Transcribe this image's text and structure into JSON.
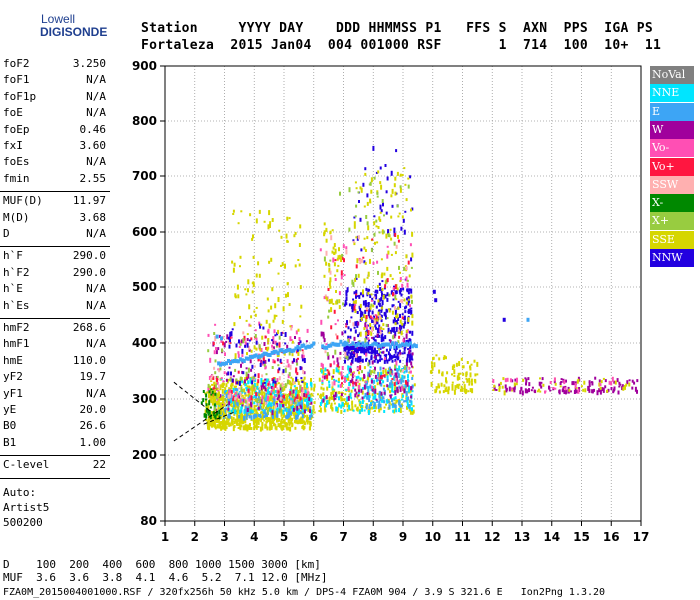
{
  "logo": {
    "line1": "Lowell",
    "line2": "DIGISONDE"
  },
  "header": {
    "row1": "Station     YYYY DAY    DDD HHMMSS P1   FFS S  AXN  PPS  IGA PS",
    "row2": "Fortaleza  2015 Jan04  004 001000 RSF       1  714  100  10+  11"
  },
  "params": [
    [
      {
        "name": "foF2",
        "value": "3.250"
      },
      {
        "name": "foF1",
        "value": "N/A"
      },
      {
        "name": "foF1p",
        "value": "N/A"
      },
      {
        "name": "foE",
        "value": "N/A"
      },
      {
        "name": "foEp",
        "value": "0.46"
      },
      {
        "name": "fxI",
        "value": "3.60"
      },
      {
        "name": "foEs",
        "value": "N/A"
      },
      {
        "name": "fmin",
        "value": "2.55"
      }
    ],
    [
      {
        "name": "MUF(D)",
        "value": "11.97"
      },
      {
        "name": "M(D)",
        "value": "3.68"
      },
      {
        "name": "D",
        "value": "N/A"
      }
    ],
    [
      {
        "name": "h`F",
        "value": "290.0"
      },
      {
        "name": "h`F2",
        "value": "290.0"
      },
      {
        "name": "h`E",
        "value": "N/A"
      },
      {
        "name": "h`Es",
        "value": "N/A"
      }
    ],
    [
      {
        "name": "hmF2",
        "value": "268.6"
      },
      {
        "name": "hmF1",
        "value": "N/A"
      },
      {
        "name": "hmE",
        "value": "110.0"
      },
      {
        "name": "yF2",
        "value": "19.7"
      },
      {
        "name": "yF1",
        "value": "N/A"
      },
      {
        "name": "yE",
        "value": "20.0"
      },
      {
        "name": "B0",
        "value": "26.6"
      },
      {
        "name": "B1",
        "value": "1.00"
      }
    ],
    [
      {
        "name": "C-level",
        "value": "22"
      }
    ]
  ],
  "autoscale": {
    "line1": "Auto:",
    "line2": "Artist5",
    "line3": "500200"
  },
  "footer": {
    "d_row": "D    100  200  400  600  800 1000 1500 3000 [km]",
    "muf_row": "MUF  3.6  3.6  3.8  4.1  4.6  5.2  7.1 12.0 [MHz]",
    "file_row": "FZA0M_2015004001000.RSF / 320fx256h 50 kHz 5.0 km / DPS-4 FZA0M 904 / 3.9 S 321.6 E   Ion2Png 1.3.20"
  },
  "chart_data": {
    "type": "scatter",
    "title": "",
    "xlabel": "",
    "ylabel": "",
    "xlim": [
      1,
      17
    ],
    "ylim": [
      80,
      900
    ],
    "x_ticks": [
      1,
      2,
      3,
      4,
      5,
      6,
      7,
      8,
      9,
      10,
      11,
      12,
      13,
      14,
      15,
      16,
      17
    ],
    "y_ticks": [
      80,
      200,
      300,
      400,
      500,
      600,
      700,
      800,
      900
    ],
    "grid": true,
    "legend_position": "right",
    "legend": [
      {
        "name": "NoVal",
        "color": "#808080"
      },
      {
        "name": "NNE",
        "color": "#00e5ff"
      },
      {
        "name": "E",
        "color": "#3da5f5"
      },
      {
        "name": "W",
        "color": "#a0009c"
      },
      {
        "name": "Vo-",
        "color": "#ff4fb4"
      },
      {
        "name": "Vo+",
        "color": "#ff1640"
      },
      {
        "name": "SSW",
        "color": "#ffb0b0"
      },
      {
        "name": "X-",
        "color": "#008800"
      },
      {
        "name": "X+",
        "color": "#98cc40"
      },
      {
        "name": "SSE",
        "color": "#d6d600"
      },
      {
        "name": "NNW",
        "color": "#2200e0"
      }
    ],
    "clusters": [
      {
        "series": "SSE",
        "x": [
          2.4,
          5.9
        ],
        "y": [
          250,
          340
        ],
        "n": 520
      },
      {
        "series": "SSE",
        "x": [
          2.9,
          6.0
        ],
        "y": [
          260,
          330
        ],
        "n": 260
      },
      {
        "series": "E",
        "x": [
          2.6,
          5.9
        ],
        "y": [
          270,
          320
        ],
        "n": 150
      },
      {
        "series": "NNE",
        "x": [
          2.8,
          5.9
        ],
        "y": [
          280,
          340
        ],
        "n": 110
      },
      {
        "series": "W",
        "x": [
          2.5,
          5.9
        ],
        "y": [
          280,
          420
        ],
        "n": 90
      },
      {
        "series": "Vo-",
        "x": [
          2.4,
          5.8
        ],
        "y": [
          300,
          440
        ],
        "n": 90
      },
      {
        "series": "Vo+",
        "x": [
          2.5,
          5.8
        ],
        "y": [
          300,
          420
        ],
        "n": 60
      },
      {
        "series": "SSW",
        "x": [
          2.5,
          5.8
        ],
        "y": [
          290,
          430
        ],
        "n": 50
      },
      {
        "series": "X+",
        "x": [
          2.4,
          5.6
        ],
        "y": [
          280,
          420
        ],
        "n": 60
      },
      {
        "series": "NNW",
        "x": [
          3.0,
          5.8
        ],
        "y": [
          330,
          440
        ],
        "n": 50
      },
      {
        "series": "SSE",
        "x": [
          3.2,
          5.6
        ],
        "y": [
          380,
          640
        ],
        "n": 110
      },
      {
        "series": "SSE",
        "x": [
          2.3,
          3.0
        ],
        "y": [
          260,
          320
        ],
        "n": 80
      },
      {
        "series": "X-",
        "x": [
          2.2,
          2.8
        ],
        "y": [
          270,
          320
        ],
        "n": 30
      },
      {
        "series": "NNW",
        "x": [
          7.0,
          9.3
        ],
        "y": [
          370,
          500
        ],
        "n": 320
      },
      {
        "series": "NNW",
        "x": [
          7.3,
          9.3
        ],
        "y": [
          420,
          760
        ],
        "n": 80
      },
      {
        "series": "SSE",
        "x": [
          6.1,
          9.4
        ],
        "y": [
          280,
          360
        ],
        "n": 220
      },
      {
        "series": "NNE",
        "x": [
          6.2,
          9.3
        ],
        "y": [
          280,
          360
        ],
        "n": 140
      },
      {
        "series": "E",
        "x": [
          7.7,
          9.3
        ],
        "y": [
          290,
          360
        ],
        "n": 90
      },
      {
        "series": "W",
        "x": [
          6.2,
          9.3
        ],
        "y": [
          300,
          440
        ],
        "n": 110
      },
      {
        "series": "Vo-",
        "x": [
          6.2,
          9.3
        ],
        "y": [
          320,
          580
        ],
        "n": 70
      },
      {
        "series": "SSE",
        "x": [
          7.3,
          9.3
        ],
        "y": [
          420,
          720
        ],
        "n": 140
      },
      {
        "series": "X+",
        "x": [
          6.3,
          9.3
        ],
        "y": [
          350,
          700
        ],
        "n": 70
      },
      {
        "series": "Vo+",
        "x": [
          6.4,
          9.2
        ],
        "y": [
          330,
          600
        ],
        "n": 50
      },
      {
        "series": "SSE",
        "x": [
          6.3,
          6.9
        ],
        "y": [
          460,
          620
        ],
        "n": 40
      },
      {
        "series": "SSW",
        "x": [
          6.3,
          9.2
        ],
        "y": [
          330,
          600
        ],
        "n": 40
      },
      {
        "series": "SSE",
        "x": [
          9.9,
          11.5
        ],
        "y": [
          315,
          380
        ],
        "n": 90
      },
      {
        "series": "W",
        "x": [
          12.0,
          16.9
        ],
        "y": [
          315,
          340
        ],
        "n": 110
      },
      {
        "series": "SSE",
        "x": [
          12.0,
          16.6
        ],
        "y": [
          315,
          340
        ],
        "n": 40
      },
      {
        "series": "Vo-",
        "x": [
          12.0,
          16.4
        ],
        "y": [
          315,
          345
        ],
        "n": 20
      }
    ],
    "stripes": [
      {
        "series": "E",
        "x": [
          2.75,
          5.95
        ],
        "y": [
          365,
          400
        ]
      },
      {
        "series": "E",
        "x": [
          6.25,
          7.0
        ],
        "y": [
          395,
          405
        ]
      },
      {
        "series": "E",
        "x": [
          7.0,
          9.4
        ],
        "y": [
          400,
          400
        ]
      },
      {
        "series": "NNW",
        "x": [
          7.0,
          7.9
        ],
        "y": [
          392,
          392
        ]
      }
    ],
    "outliers": [
      {
        "series": "E",
        "x": 2.7,
        "y": 415
      },
      {
        "series": "E",
        "x": 2.85,
        "y": 412
      },
      {
        "series": "NNW",
        "x": 10.0,
        "y": 495
      },
      {
        "series": "NNW",
        "x": 10.05,
        "y": 480
      },
      {
        "series": "NNW",
        "x": 12.35,
        "y": 445
      },
      {
        "series": "E",
        "x": 13.15,
        "y": 445
      }
    ],
    "trace_lines": [
      {
        "points": [
          [
            1.3,
            330
          ],
          [
            2.6,
            275
          ]
        ]
      },
      {
        "points": [
          [
            1.3,
            225
          ],
          [
            3.1,
            290
          ]
        ]
      },
      {
        "points": [
          [
            2.3,
            255
          ],
          [
            3.4,
            278
          ]
        ]
      }
    ]
  }
}
